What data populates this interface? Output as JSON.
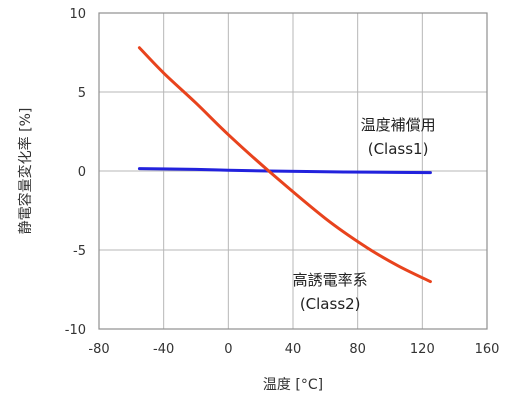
{
  "chart_data": {
    "type": "line",
    "xlabel": "温度 [°C]",
    "ylabel": "静電容量変化率 [%]",
    "xlim": [
      -80,
      160
    ],
    "ylim": [
      -10,
      10
    ],
    "x_ticks": [
      -80,
      -40,
      0,
      40,
      80,
      120,
      160
    ],
    "y_ticks": [
      -10,
      -5,
      0,
      5,
      10
    ],
    "grid": true,
    "series": [
      {
        "color": "#2222dd",
        "x": [
          -55,
          -20,
          0,
          25,
          60,
          85,
          125
        ],
        "y": [
          0.15,
          0.1,
          0.05,
          0.0,
          -0.05,
          -0.07,
          -0.1
        ]
      },
      {
        "color": "#e8431d",
        "x": [
          -55,
          -40,
          -20,
          0,
          25,
          60,
          85,
          105,
          125
        ],
        "y": [
          7.8,
          6.2,
          4.3,
          2.3,
          0.0,
          -3.0,
          -4.8,
          -6.0,
          -7.0
        ]
      }
    ],
    "annotations": [
      {
        "label_lines": [
          "温度補償用",
          "(Class1)"
        ],
        "at": [
          105,
          2.6
        ]
      },
      {
        "label_lines": [
          "高誘電率系",
          "(Class2)"
        ],
        "at": [
          63,
          -7.2
        ]
      }
    ]
  }
}
